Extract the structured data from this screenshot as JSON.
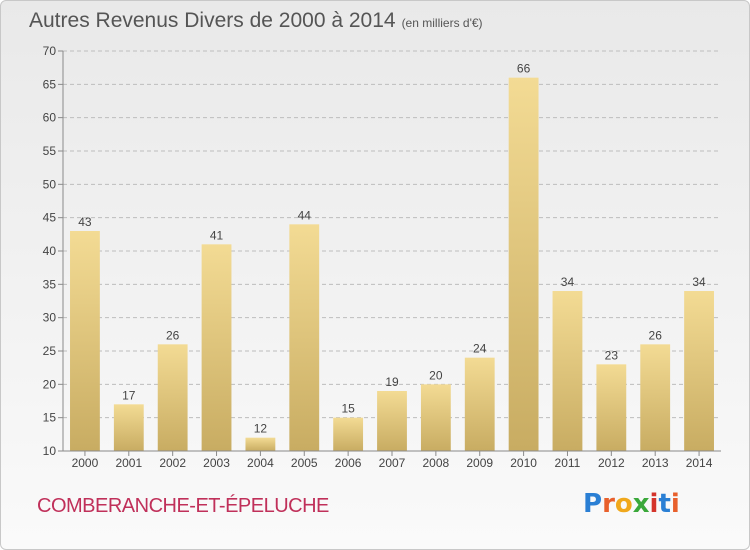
{
  "title": "Autres Revenus Divers de 2000 à 2014",
  "unit_label": "(en milliers d'€)",
  "place_name": "COMBERANCHE-ET-ÉPELUCHE",
  "logo": {
    "text": "Proxiti",
    "letter_colors": [
      "#2a7fd4",
      "#e8602c",
      "#f0a81c",
      "#3aa83a",
      "#d4342c",
      "#2a7fd4",
      "#e8602c"
    ]
  },
  "colors": {
    "bar_light": "#f3db94",
    "bar_dark": "#c8ac62",
    "grid": "#bdbdbd",
    "axis": "#8a8a8a",
    "text": "#444444"
  },
  "chart_data": {
    "type": "bar",
    "categories": [
      "2000",
      "2001",
      "2002",
      "2003",
      "2004",
      "2005",
      "2006",
      "2007",
      "2008",
      "2009",
      "2010",
      "2011",
      "2012",
      "2013",
      "2014"
    ],
    "values": [
      43,
      17,
      26,
      41,
      12,
      44,
      15,
      19,
      20,
      24,
      66,
      34,
      23,
      26,
      34
    ],
    "data_labels": [
      "43",
      "17",
      "26",
      "41",
      "12",
      "44",
      "15",
      "19",
      "20",
      "24",
      "66",
      "34",
      "23",
      "26",
      "34"
    ],
    "yticks": [
      10,
      15,
      20,
      25,
      30,
      35,
      40,
      45,
      50,
      55,
      60,
      65,
      70
    ],
    "ylim": [
      10,
      70
    ],
    "grid": true,
    "xlabel": "",
    "ylabel": ""
  }
}
